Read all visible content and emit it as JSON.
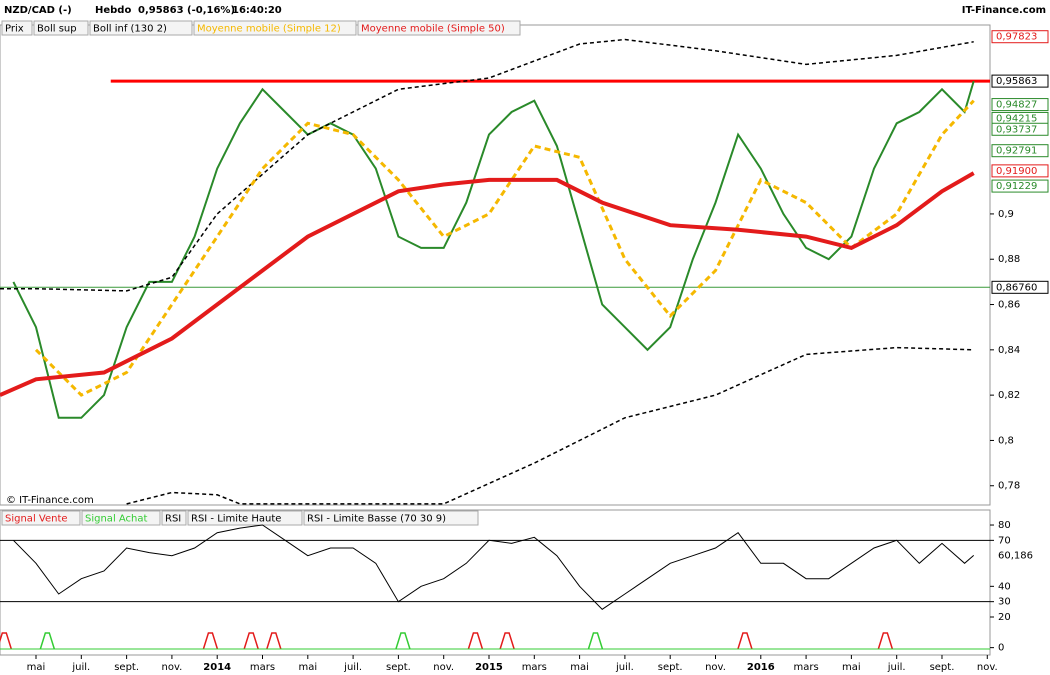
{
  "header": {
    "symbol": "NZD/CAD (-)",
    "period": "Hebdo",
    "price": "0,95863 (-0,16%)",
    "time": "16:40:20",
    "brand": "IT-Finance.com",
    "watermark": "© IT-Finance.com"
  },
  "legend": [
    "Prix",
    "Boll sup",
    "Boll inf (130 2)",
    "Moyenne mobile (Simple 12)",
    "Moyenne mobile (Simple 50)"
  ],
  "rsi_legend": [
    "Signal Vente",
    "Signal Achat",
    "RSI",
    "RSI - Limite Haute",
    "RSI - Limite Basse (70 30 9)"
  ],
  "chart_data": [
    {
      "type": "line",
      "xlim": [
        2.41,
        46.12
      ],
      "ylim": [
        0.7715,
        0.9834
      ],
      "xticks": [
        {
          "value": 4,
          "label": "mai"
        },
        {
          "value": 6,
          "label": "juil."
        },
        {
          "value": 8,
          "label": "sept."
        },
        {
          "value": 10,
          "label": "nov."
        },
        {
          "value": 12,
          "label": "2014"
        },
        {
          "value": 14,
          "label": "mars"
        },
        {
          "value": 16,
          "label": "mai"
        },
        {
          "value": 18,
          "label": "juil."
        },
        {
          "value": 20,
          "label": "sept."
        },
        {
          "value": 22,
          "label": "nov."
        },
        {
          "value": 24,
          "label": "2015"
        },
        {
          "value": 26,
          "label": "mars"
        },
        {
          "value": 28,
          "label": "mai"
        },
        {
          "value": 30,
          "label": "juil."
        },
        {
          "value": 32,
          "label": "sept."
        },
        {
          "value": 34,
          "label": "nov."
        },
        {
          "value": 36,
          "label": "2016"
        },
        {
          "value": 38,
          "label": "mars"
        },
        {
          "value": 40,
          "label": "mai"
        },
        {
          "value": 42,
          "label": "juil."
        },
        {
          "value": 44,
          "label": "sept."
        },
        {
          "value": 46,
          "label": "nov."
        }
      ],
      "yticks": [
        {
          "value": 0.78,
          "label": "0,78"
        },
        {
          "value": 0.8,
          "label": "0,8"
        },
        {
          "value": 0.82,
          "label": "0,82"
        },
        {
          "value": 0.84,
          "label": "0,84"
        },
        {
          "value": 0.86,
          "label": "0,86"
        },
        {
          "value": 0.88,
          "label": "0,88"
        },
        {
          "value": 0.9,
          "label": "0,9"
        }
      ],
      "series": [
        {
          "name": "Prix",
          "color": "#2a8a2a",
          "width": 2,
          "dash": "",
          "x": [
            3,
            4,
            5,
            6,
            7,
            8,
            9,
            10,
            11,
            12,
            13,
            14,
            15,
            16,
            17,
            18,
            19,
            20,
            21,
            22,
            23,
            24,
            25,
            26,
            27,
            28,
            29,
            30,
            31,
            32,
            33,
            34,
            35,
            36,
            37,
            38,
            39,
            40,
            41,
            42,
            43,
            44,
            45,
            45.4
          ],
          "values": [
            0.87,
            0.85,
            0.81,
            0.81,
            0.82,
            0.85,
            0.87,
            0.87,
            0.89,
            0.92,
            0.94,
            0.955,
            0.945,
            0.935,
            0.94,
            0.935,
            0.92,
            0.89,
            0.885,
            0.885,
            0.905,
            0.935,
            0.945,
            0.95,
            0.93,
            0.895,
            0.86,
            0.85,
            0.84,
            0.85,
            0.88,
            0.905,
            0.935,
            0.92,
            0.9,
            0.885,
            0.88,
            0.89,
            0.92,
            0.94,
            0.945,
            0.955,
            0.945,
            0.95863
          ]
        },
        {
          "name": "Boll sup",
          "color": "#000",
          "width": 1.5,
          "dash": "4 3",
          "x": [
            2.41,
            4,
            8,
            10,
            12,
            16,
            20,
            24,
            28,
            30,
            34,
            38,
            42,
            45.4
          ],
          "values": [
            0.867,
            0.867,
            0.866,
            0.872,
            0.9,
            0.935,
            0.955,
            0.96,
            0.975,
            0.977,
            0.972,
            0.966,
            0.97,
            0.976
          ]
        },
        {
          "name": "Boll inf (130 2)",
          "color": "#000",
          "width": 1.5,
          "dash": "4 3",
          "x": [
            8,
            10,
            12,
            13,
            22,
            26,
            30,
            34,
            38,
            42,
            45.4
          ],
          "values": [
            0.772,
            0.777,
            0.776,
            0.772,
            0.772,
            0.79,
            0.81,
            0.82,
            0.838,
            0.841,
            0.84
          ]
        },
        {
          "name": "Moyenne mobile (Simple 12)",
          "color": "#f5b800",
          "width": 3,
          "dash": "6 4",
          "x": [
            4,
            6,
            8,
            10,
            12,
            14,
            16,
            18,
            20,
            22,
            24,
            26,
            28,
            30,
            32,
            34,
            36,
            38,
            40,
            42,
            44,
            45.4
          ],
          "values": [
            0.84,
            0.82,
            0.83,
            0.86,
            0.89,
            0.92,
            0.94,
            0.935,
            0.915,
            0.89,
            0.9,
            0.93,
            0.925,
            0.88,
            0.855,
            0.875,
            0.915,
            0.905,
            0.885,
            0.9,
            0.935,
            0.95
          ]
        },
        {
          "name": "Moyenne mobile (Simple 50)",
          "color": "#e31b1b",
          "width": 4,
          "dash": "",
          "x": [
            2.41,
            4,
            7,
            10,
            12,
            14,
            16,
            18,
            20,
            22,
            24,
            27,
            29,
            32,
            35,
            38,
            40,
            42,
            44,
            45.4
          ],
          "values": [
            0.82,
            0.827,
            0.83,
            0.845,
            0.86,
            0.875,
            0.89,
            0.9,
            0.91,
            0.913,
            0.915,
            0.915,
            0.905,
            0.895,
            0.893,
            0.89,
            0.885,
            0.895,
            0.91,
            0.918
          ]
        }
      ],
      "hlines": [
        {
          "value": 0.95863,
          "color": "#f00",
          "from": 7.3
        },
        {
          "value": 0.8676,
          "color": "#3a9a3a",
          "from": 2.41
        }
      ],
      "levels": [
        {
          "value": 0.97823,
          "label": "0,97823",
          "color": "#e31b1b"
        },
        {
          "value": 0.95863,
          "label": "0,95863",
          "color": "#000"
        },
        {
          "value": 0.94827,
          "label": "0,94827",
          "color": "#2a8a2a"
        },
        {
          "value": 0.94215,
          "label": "0,94215",
          "color": "#2a8a2a"
        },
        {
          "value": 0.93737,
          "label": "0,93737",
          "color": "#2a8a2a"
        },
        {
          "value": 0.92791,
          "label": "0,92791",
          "color": "#2a8a2a"
        },
        {
          "value": 0.919,
          "label": "0,91900",
          "color": "#e31b1b"
        },
        {
          "value": 0.91229,
          "label": "0,91229",
          "color": "#2a8a2a"
        },
        {
          "value": 0.8676,
          "label": "0,86760",
          "color": "#000"
        }
      ]
    },
    {
      "type": "line",
      "xlim": [
        2.41,
        46.12
      ],
      "ylim": [
        -4.8,
        89.8
      ],
      "yticks": [
        0,
        20,
        30,
        40,
        70,
        80
      ],
      "series": [
        {
          "name": "RSI",
          "color": "#000",
          "width": 1,
          "dash": "",
          "x": [
            3,
            4,
            5,
            6,
            7,
            8,
            9,
            10,
            11,
            12,
            13,
            14,
            15,
            16,
            17,
            18,
            19,
            20,
            21,
            22,
            23,
            24,
            25,
            26,
            27,
            28,
            29,
            30,
            31,
            32,
            33,
            34,
            35,
            36,
            37,
            38,
            39,
            40,
            41,
            42,
            43,
            44,
            45,
            45.4
          ],
          "values": [
            70,
            55,
            35,
            45,
            50,
            65,
            62,
            60,
            65,
            75,
            78,
            80,
            70,
            60,
            65,
            65,
            55,
            30,
            40,
            45,
            55,
            70,
            68,
            72,
            60,
            40,
            25,
            35,
            45,
            55,
            60,
            65,
            75,
            55,
            55,
            45,
            45,
            55,
            65,
            70,
            55,
            68,
            55,
            60.186
          ],
          "value_labels": [
            null,
            null,
            null,
            null,
            null,
            null,
            null,
            null,
            null,
            null,
            null,
            null,
            null,
            null,
            null,
            null,
            null,
            null,
            null,
            null,
            null,
            null,
            null,
            null,
            null,
            null,
            null,
            null,
            null,
            null,
            null,
            null,
            null,
            null,
            null,
            null,
            null,
            null,
            null,
            null,
            null,
            null,
            null,
            "60,186"
          ]
        }
      ],
      "hlines": [
        {
          "value": 70,
          "color": "#000",
          "from": 2.41
        },
        {
          "value": 30,
          "color": "#000",
          "from": 2.41
        }
      ],
      "signals": [
        {
          "name": "Signal Vente",
          "color": "#e31b1b",
          "x": [
            2.6,
            11.7,
            13.5,
            14.5,
            23.4,
            24.8,
            35.3,
            41.5
          ]
        },
        {
          "name": "Signal Achat",
          "color": "#3c3",
          "x": [
            4.5,
            20.2,
            28.7
          ]
        }
      ]
    }
  ]
}
